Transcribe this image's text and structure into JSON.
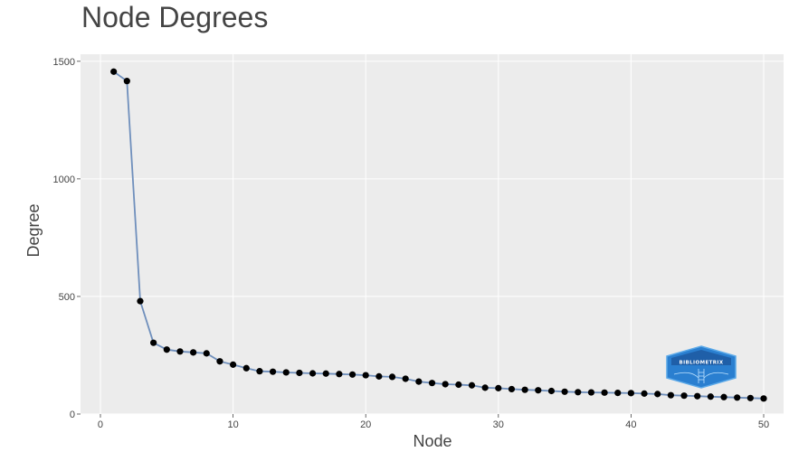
{
  "chart_data": {
    "type": "line",
    "title": "Node Degrees",
    "xlabel": "Node",
    "ylabel": "Degree",
    "xlim": [
      -1.5,
      51.5
    ],
    "ylim": [
      0,
      1530
    ],
    "x_ticks": [
      0,
      10,
      20,
      30,
      40,
      50
    ],
    "y_ticks": [
      0,
      500,
      1000,
      1500
    ],
    "grid": true,
    "background": "#ececec",
    "line_color": "#6f8fbc",
    "marker_color": "#000000",
    "series": [
      {
        "x": [
          1,
          2,
          3,
          4,
          5,
          6,
          7,
          8,
          9,
          10,
          11,
          12,
          13,
          14,
          15,
          16,
          17,
          18,
          19,
          20,
          21,
          22,
          23,
          24,
          25,
          26,
          27,
          28,
          29,
          30,
          31,
          32,
          33,
          34,
          35,
          36,
          37,
          38,
          39,
          40,
          41,
          42,
          43,
          44,
          45,
          46,
          47,
          48,
          49,
          50
        ],
        "values": [
          1456,
          1416,
          480,
          303,
          274,
          266,
          262,
          258,
          224,
          210,
          195,
          182,
          180,
          177,
          175,
          173,
          172,
          170,
          168,
          165,
          160,
          158,
          150,
          138,
          132,
          127,
          125,
          122,
          112,
          110,
          106,
          103,
          101,
          98,
          95,
          93,
          92,
          91,
          90,
          89,
          87,
          85,
          80,
          78,
          76,
          74,
          72,
          70,
          68,
          66
        ]
      }
    ]
  },
  "watermark": {
    "text": "BIBLIOMETRIX"
  }
}
